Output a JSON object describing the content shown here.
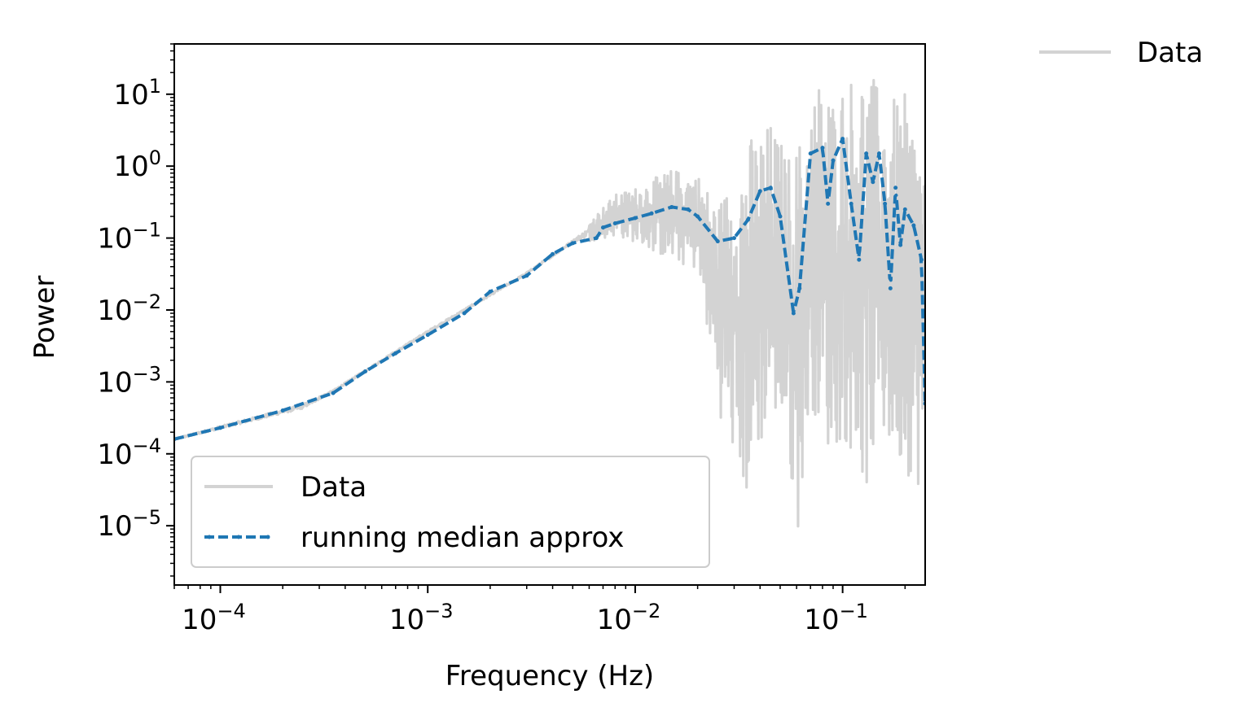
{
  "chart_data": {
    "type": "line",
    "scale": {
      "x": "log",
      "y": "log"
    },
    "xlabel": "Frequency (Hz)",
    "ylabel": "Power",
    "xlim": [
      6e-05,
      0.25
    ],
    "ylim": [
      1.5e-06,
      50
    ],
    "grid": false,
    "x_ticks": [
      {
        "base": "10",
        "exp": "−4",
        "value": 0.0001
      },
      {
        "base": "10",
        "exp": "−3",
        "value": 0.001
      },
      {
        "base": "10",
        "exp": "−2",
        "value": 0.01
      },
      {
        "base": "10",
        "exp": "−1",
        "value": 0.1
      }
    ],
    "y_ticks": [
      {
        "base": "10",
        "exp": "1",
        "value": 10
      },
      {
        "base": "10",
        "exp": "0",
        "value": 1
      },
      {
        "base": "10",
        "exp": "−1",
        "value": 0.1
      },
      {
        "base": "10",
        "exp": "−2",
        "value": 0.01
      },
      {
        "base": "10",
        "exp": "−3",
        "value": 0.001
      },
      {
        "base": "10",
        "exp": "−4",
        "value": 0.0001
      },
      {
        "base": "10",
        "exp": "−5",
        "value": 1e-05
      }
    ],
    "legend_inside": {
      "position": "lower left",
      "entries": [
        {
          "label": "Data",
          "color": "#d3d3d3",
          "style": "solid"
        },
        {
          "label": "running median approx",
          "color": "#1f77b4",
          "style": "dashed-dots"
        }
      ]
    },
    "legend_outside": {
      "position": "upper right outside",
      "entries": [
        {
          "label": "Data",
          "color": "#d3d3d3",
          "style": "solid"
        }
      ]
    },
    "series": [
      {
        "name": "Data",
        "color": "#d3d3d3",
        "style": "solid",
        "envelope_low": [
          [
            6e-05,
            0.00015
          ],
          [
            0.00025,
            0.00038
          ],
          [
            0.00035,
            0.0007
          ],
          [
            0.001,
            0.0045
          ],
          [
            0.003,
            0.03
          ],
          [
            0.005,
            0.08
          ],
          [
            0.008,
            0.1
          ],
          [
            0.01,
            0.08
          ],
          [
            0.015,
            0.04
          ],
          [
            0.02,
            0.03
          ],
          [
            0.026,
            0.0002
          ],
          [
            0.03,
            5e-05
          ],
          [
            0.035,
            1e-05
          ],
          [
            0.045,
            0.0003
          ],
          [
            0.055,
            5e-05
          ],
          [
            0.06,
            3e-06
          ],
          [
            0.07,
            0.0003
          ],
          [
            0.08,
            0.0001
          ],
          [
            0.09,
            4e-05
          ],
          [
            0.1,
            0.0001
          ],
          [
            0.13,
            1.5e-05
          ],
          [
            0.15,
            0.0001
          ],
          [
            0.17,
            5e-05
          ],
          [
            0.2,
            3e-05
          ],
          [
            0.25,
            1.5e-05
          ]
        ],
        "envelope_high": [
          [
            6e-05,
            0.00017
          ],
          [
            0.00025,
            0.00055
          ],
          [
            0.00035,
            0.0008
          ],
          [
            0.001,
            0.0055
          ],
          [
            0.003,
            0.035
          ],
          [
            0.005,
            0.1
          ],
          [
            0.008,
            0.4
          ],
          [
            0.01,
            0.5
          ],
          [
            0.015,
            0.9
          ],
          [
            0.02,
            0.8
          ],
          [
            0.025,
            0.3
          ],
          [
            0.03,
            0.8
          ],
          [
            0.035,
            2.5
          ],
          [
            0.045,
            4
          ],
          [
            0.055,
            1.5
          ],
          [
            0.065,
            3
          ],
          [
            0.075,
            15
          ],
          [
            0.08,
            20
          ],
          [
            0.09,
            10
          ],
          [
            0.1,
            15
          ],
          [
            0.12,
            25
          ],
          [
            0.14,
            18
          ],
          [
            0.16,
            8
          ],
          [
            0.2,
            10
          ],
          [
            0.25,
            1.5
          ]
        ]
      },
      {
        "name": "running median approx",
        "color": "#1f77b4",
        "style": "dashed-dots",
        "points": [
          [
            6e-05,
            0.00016
          ],
          [
            0.0001,
            0.00023
          ],
          [
            0.0002,
            0.0004
          ],
          [
            0.00035,
            0.0007
          ],
          [
            0.0005,
            0.0014
          ],
          [
            0.0007,
            0.0025
          ],
          [
            0.001,
            0.0045
          ],
          [
            0.0015,
            0.009
          ],
          [
            0.002,
            0.018
          ],
          [
            0.003,
            0.03
          ],
          [
            0.004,
            0.06
          ],
          [
            0.005,
            0.085
          ],
          [
            0.0065,
            0.1
          ],
          [
            0.007,
            0.14
          ],
          [
            0.008,
            0.16
          ],
          [
            0.01,
            0.19
          ],
          [
            0.012,
            0.22
          ],
          [
            0.015,
            0.27
          ],
          [
            0.018,
            0.25
          ],
          [
            0.02,
            0.2
          ],
          [
            0.025,
            0.09
          ],
          [
            0.03,
            0.1
          ],
          [
            0.035,
            0.18
          ],
          [
            0.04,
            0.45
          ],
          [
            0.045,
            0.5
          ],
          [
            0.05,
            0.2
          ],
          [
            0.058,
            0.009
          ],
          [
            0.062,
            0.02
          ],
          [
            0.07,
            1.5
          ],
          [
            0.08,
            1.8
          ],
          [
            0.085,
            0.3
          ],
          [
            0.09,
            1.2
          ],
          [
            0.1,
            2.4
          ],
          [
            0.11,
            0.3
          ],
          [
            0.12,
            0.05
          ],
          [
            0.13,
            1.5
          ],
          [
            0.14,
            0.6
          ],
          [
            0.15,
            1.5
          ],
          [
            0.16,
            0.3
          ],
          [
            0.17,
            0.02
          ],
          [
            0.18,
            0.5
          ],
          [
            0.19,
            0.08
          ],
          [
            0.2,
            0.25
          ],
          [
            0.22,
            0.15
          ],
          [
            0.24,
            0.05
          ],
          [
            0.25,
            0.0005
          ]
        ]
      }
    ]
  }
}
